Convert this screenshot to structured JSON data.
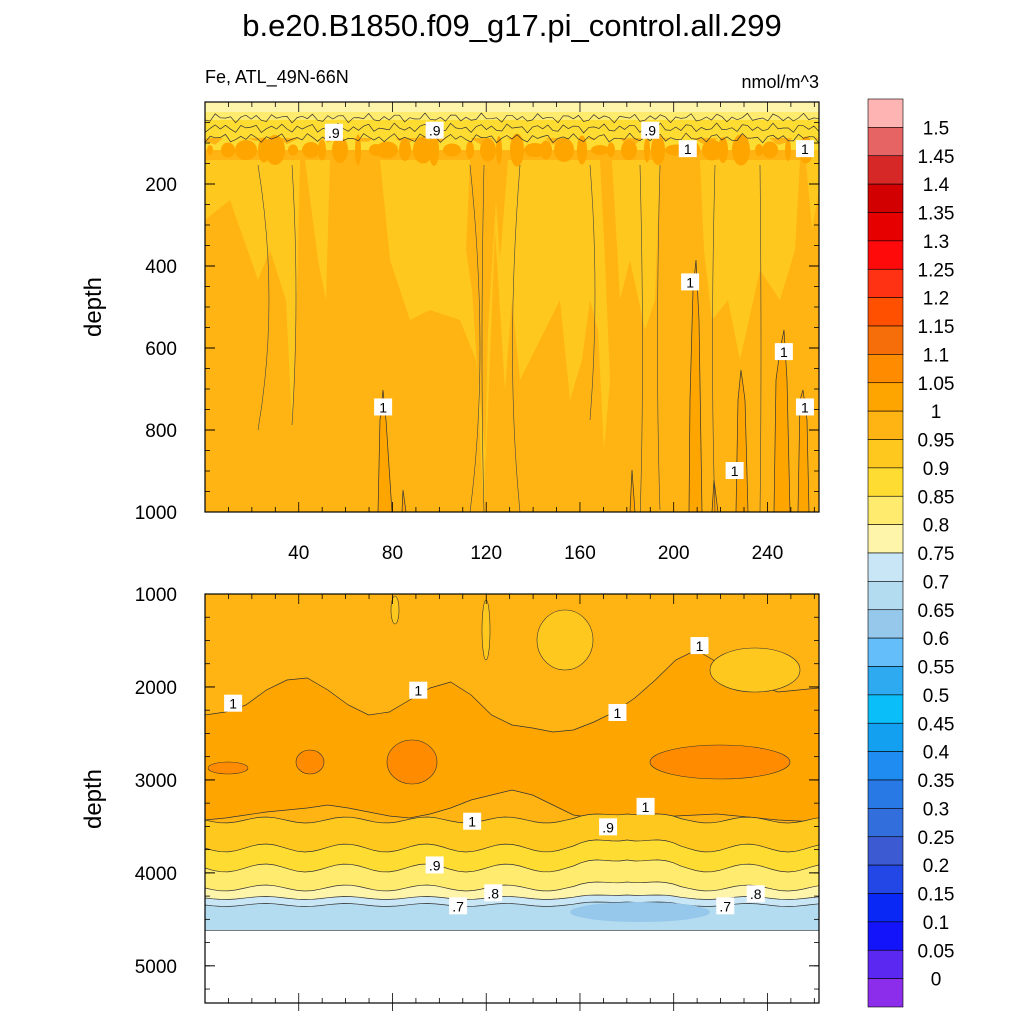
{
  "title": "b.e20.B1850.f09_g17.pi_control.all.299",
  "chart_data": [
    {
      "type": "heatmap",
      "panel": "upper",
      "subtitle_left": "Fe, ATL_49N-66N",
      "subtitle_right": "nmol/m^3",
      "ylabel": "depth",
      "ylim": [
        0,
        1000
      ],
      "y_reversed": true,
      "xlim": [
        0,
        262
      ],
      "x_ticks": [
        "40",
        "80",
        "120",
        "160",
        "200",
        "240"
      ],
      "y_ticks": [
        "200",
        "400",
        "600",
        "800",
        "1000"
      ],
      "contour_labels": [
        {
          "text": ".9",
          "x": 55,
          "y": 75
        },
        {
          "text": ".9",
          "x": 98,
          "y": 70
        },
        {
          "text": ".9",
          "x": 190,
          "y": 70
        },
        {
          "text": "1",
          "x": 206,
          "y": 115
        },
        {
          "text": "1",
          "x": 256,
          "y": 115
        },
        {
          "text": "1",
          "x": 207,
          "y": 440
        },
        {
          "text": "1",
          "x": 76,
          "y": 745
        },
        {
          "text": "1",
          "x": 247,
          "y": 610
        },
        {
          "text": "1",
          "x": 256,
          "y": 745
        },
        {
          "text": "1",
          "x": 226,
          "y": 900
        }
      ]
    },
    {
      "type": "heatmap",
      "panel": "lower",
      "ylabel": "depth",
      "ylim": [
        1000,
        5400
      ],
      "y_reversed": true,
      "xlim": [
        0,
        262
      ],
      "y_ticks": [
        "1000",
        "2000",
        "3000",
        "4000",
        "5000"
      ],
      "valid_depth_max": 4620,
      "contour_labels": [
        {
          "text": "1",
          "x": 12,
          "y": 2180
        },
        {
          "text": "1",
          "x": 91,
          "y": 2040
        },
        {
          "text": "1",
          "x": 176,
          "y": 2280
        },
        {
          "text": "1",
          "x": 211,
          "y": 1560
        },
        {
          "text": "1",
          "x": 114,
          "y": 3450
        },
        {
          "text": "1",
          "x": 188,
          "y": 3290
        },
        {
          "text": ".9",
          "x": 98,
          "y": 3920
        },
        {
          "text": ".9",
          "x": 172,
          "y": 3510
        },
        {
          "text": ".8",
          "x": 123,
          "y": 4220
        },
        {
          "text": ".8",
          "x": 235,
          "y": 4230
        },
        {
          "text": ".7",
          "x": 108,
          "y": 4360
        },
        {
          "text": ".7",
          "x": 222,
          "y": 4360
        }
      ]
    }
  ],
  "colorbar": {
    "labels": [
      "1.5",
      "1.45",
      "1.4",
      "1.35",
      "1.3",
      "1.25",
      "1.2",
      "1.15",
      "1.1",
      "1.05",
      "1",
      "0.95",
      "0.9",
      "0.85",
      "0.8",
      "0.75",
      "0.7",
      "0.65",
      "0.6",
      "0.55",
      "0.5",
      "0.45",
      "0.4",
      "0.35",
      "0.3",
      "0.25",
      "0.2",
      "0.15",
      "0.1",
      "0.05",
      "0"
    ],
    "colors": [
      "#ffb4b4",
      "#e66464",
      "#d72828",
      "#d20000",
      "#e60000",
      "#ff0a0a",
      "#ff3214",
      "#ff5000",
      "#f56e0a",
      "#ff8c00",
      "#ffa500",
      "#ffb414",
      "#ffc81e",
      "#ffdc32",
      "#ffeb6e",
      "#fff5aa",
      "#c8e6f5",
      "#b4dcf0",
      "#96c8eb",
      "#64befa",
      "#2daaf0",
      "#0abefa",
      "#14a0f0",
      "#1e8cf0",
      "#2878e6",
      "#326edc",
      "#3c5ad2",
      "#2346e6",
      "#0a28f5",
      "#1414fa",
      "#5a28f0",
      "#8c2dec"
    ]
  }
}
